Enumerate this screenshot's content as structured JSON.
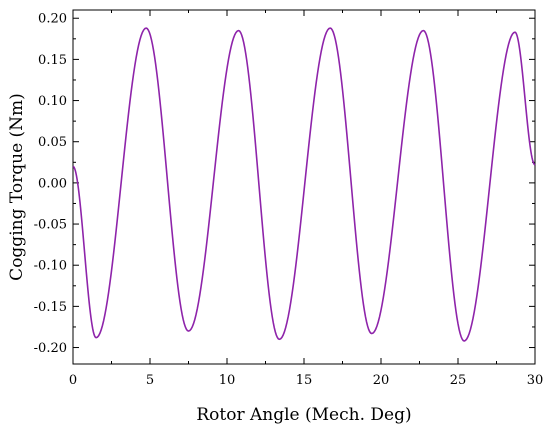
{
  "chart_data": {
    "type": "line",
    "title": "",
    "xlabel": "Rotor Angle (Mech. Deg)",
    "ylabel": "Cogging Torque (Nm)",
    "xlim": [
      0,
      30
    ],
    "ylim": [
      -0.22,
      0.21
    ],
    "xticks": [
      0,
      5,
      10,
      15,
      20,
      25,
      30
    ],
    "xtick_labels": [
      "0",
      "5",
      "10",
      "15",
      "20",
      "25",
      "30"
    ],
    "yticks": [
      -0.2,
      -0.15,
      -0.1,
      -0.05,
      0.0,
      0.05,
      0.1,
      0.15,
      0.2
    ],
    "ytick_labels": [
      "-0.20",
      "-0.15",
      "-0.10",
      "-0.05",
      "0.00",
      "0.05",
      "0.10",
      "0.15",
      "0.20"
    ],
    "grid": false,
    "legend": "none",
    "series": [
      {
        "color": "#8e24aa",
        "x": [
          0,
          1.5,
          4.75,
          7.5,
          10.75,
          13.4,
          16.7,
          19.4,
          22.75,
          25.4,
          28.7,
          30
        ],
        "y": [
          0.02,
          -0.188,
          0.188,
          -0.18,
          0.185,
          -0.19,
          0.188,
          -0.183,
          0.185,
          -0.192,
          0.183,
          0.022
        ]
      }
    ]
  }
}
